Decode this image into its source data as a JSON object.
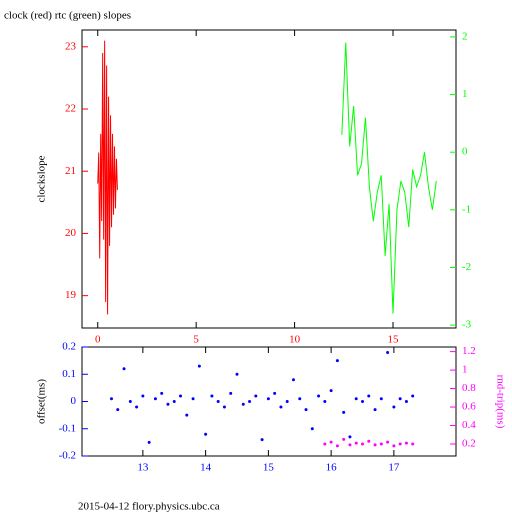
{
  "chart_data": [
    {
      "type": "line",
      "title": "clock (red) rtc (green) slopes",
      "ylabel": "clockslope",
      "xlim": [
        -0.8,
        18.2
      ],
      "xticks": [
        0,
        5,
        10,
        15
      ],
      "ylim": [
        18.48,
        23.27
      ],
      "yticks": [
        19,
        20,
        21,
        22,
        23
      ],
      "y2lim": [
        -3.05,
        2.12
      ],
      "y2ticks": [
        -3,
        -2,
        -1,
        0,
        1,
        2
      ],
      "series": [
        {
          "name": "clock",
          "color": "#ff0000",
          "x": [
            0.0,
            0.05,
            0.1,
            0.15,
            0.2,
            0.25,
            0.3,
            0.35,
            0.4,
            0.45,
            0.5,
            0.55,
            0.6,
            0.65,
            0.7,
            0.75,
            0.8,
            0.85,
            0.9,
            0.95,
            1.0
          ],
          "values": [
            20.8,
            21.3,
            19.6,
            21.6,
            20.2,
            22.9,
            19.9,
            23.1,
            18.9,
            22.7,
            18.7,
            22.2,
            19.8,
            21.9,
            20.1,
            21.6,
            20.3,
            21.4,
            20.4,
            21.2,
            20.7
          ]
        },
        {
          "name": "rtc",
          "color": "#00ff00",
          "axis": "y2",
          "x": [
            12.4,
            12.6,
            12.8,
            13.0,
            13.2,
            13.4,
            13.6,
            13.8,
            14.0,
            14.2,
            14.4,
            14.6,
            14.8,
            15.0,
            15.2,
            15.4,
            15.6,
            15.8,
            16.0,
            16.2,
            16.4,
            16.6,
            16.8,
            17.0,
            17.2
          ],
          "values": [
            0.3,
            1.9,
            0.1,
            0.8,
            -0.4,
            -0.2,
            0.6,
            -0.6,
            -1.2,
            -0.7,
            -0.4,
            -1.8,
            -0.9,
            -2.8,
            -1.0,
            -0.5,
            -0.7,
            -1.3,
            -0.3,
            -0.6,
            -0.4,
            0.0,
            -0.6,
            -1.0,
            -0.5
          ]
        }
      ]
    },
    {
      "type": "scatter",
      "ylabel": "offset(ms)",
      "y2label": "rnd-trip(ms)",
      "footer": "2015-04-12 flory.physics.ubc.ca",
      "xlim": [
        12.03,
        17.99
      ],
      "xticks": [
        13,
        14,
        15,
        16,
        17
      ],
      "ylim": [
        -0.2,
        0.2
      ],
      "yticks": [
        -0.2,
        -0.1,
        0,
        0.1,
        0.2
      ],
      "y2lim": [
        0.07,
        1.25
      ],
      "y2ticks": [
        0.2,
        0.4,
        0.6,
        0.8,
        1,
        1.2
      ],
      "series": [
        {
          "name": "offset",
          "color": "#0000ff",
          "x": [
            12.5,
            12.6,
            12.7,
            12.8,
            12.9,
            13.0,
            13.1,
            13.2,
            13.3,
            13.4,
            13.5,
            13.6,
            13.7,
            13.8,
            13.9,
            14.0,
            14.1,
            14.2,
            14.3,
            14.4,
            14.5,
            14.6,
            14.7,
            14.8,
            14.9,
            15.0,
            15.1,
            15.2,
            15.3,
            15.4,
            15.5,
            15.6,
            15.7,
            15.8,
            15.9,
            16.0,
            16.1,
            16.2,
            16.3,
            16.4,
            16.5,
            16.6,
            16.7,
            16.8,
            16.9,
            17.0,
            17.1,
            17.2,
            17.3
          ],
          "values": [
            0.01,
            -0.03,
            0.12,
            0.0,
            -0.02,
            0.02,
            -0.15,
            0.01,
            0.03,
            -0.01,
            0.0,
            0.02,
            -0.05,
            0.01,
            0.13,
            -0.12,
            0.02,
            0.0,
            -0.02,
            0.03,
            0.1,
            -0.01,
            0.0,
            0.02,
            -0.14,
            0.01,
            0.03,
            -0.02,
            0.0,
            0.08,
            0.01,
            -0.03,
            -0.1,
            0.02,
            0.0,
            0.04,
            0.15,
            -0.04,
            -0.13,
            0.01,
            0.0,
            0.02,
            -0.03,
            0.01,
            0.18,
            -0.02,
            0.01,
            0.0,
            0.02
          ]
        },
        {
          "name": "rnd-trip",
          "color": "#ff00ff",
          "axis": "y2",
          "x": [
            15.9,
            16.0,
            16.1,
            16.2,
            16.3,
            16.4,
            16.5,
            16.6,
            16.7,
            16.8,
            16.9,
            17.0,
            17.1,
            17.2,
            17.3
          ],
          "values": [
            0.2,
            0.22,
            0.18,
            0.25,
            0.19,
            0.21,
            0.2,
            0.23,
            0.19,
            0.2,
            0.22,
            0.18,
            0.2,
            0.21,
            0.2
          ]
        }
      ]
    }
  ]
}
